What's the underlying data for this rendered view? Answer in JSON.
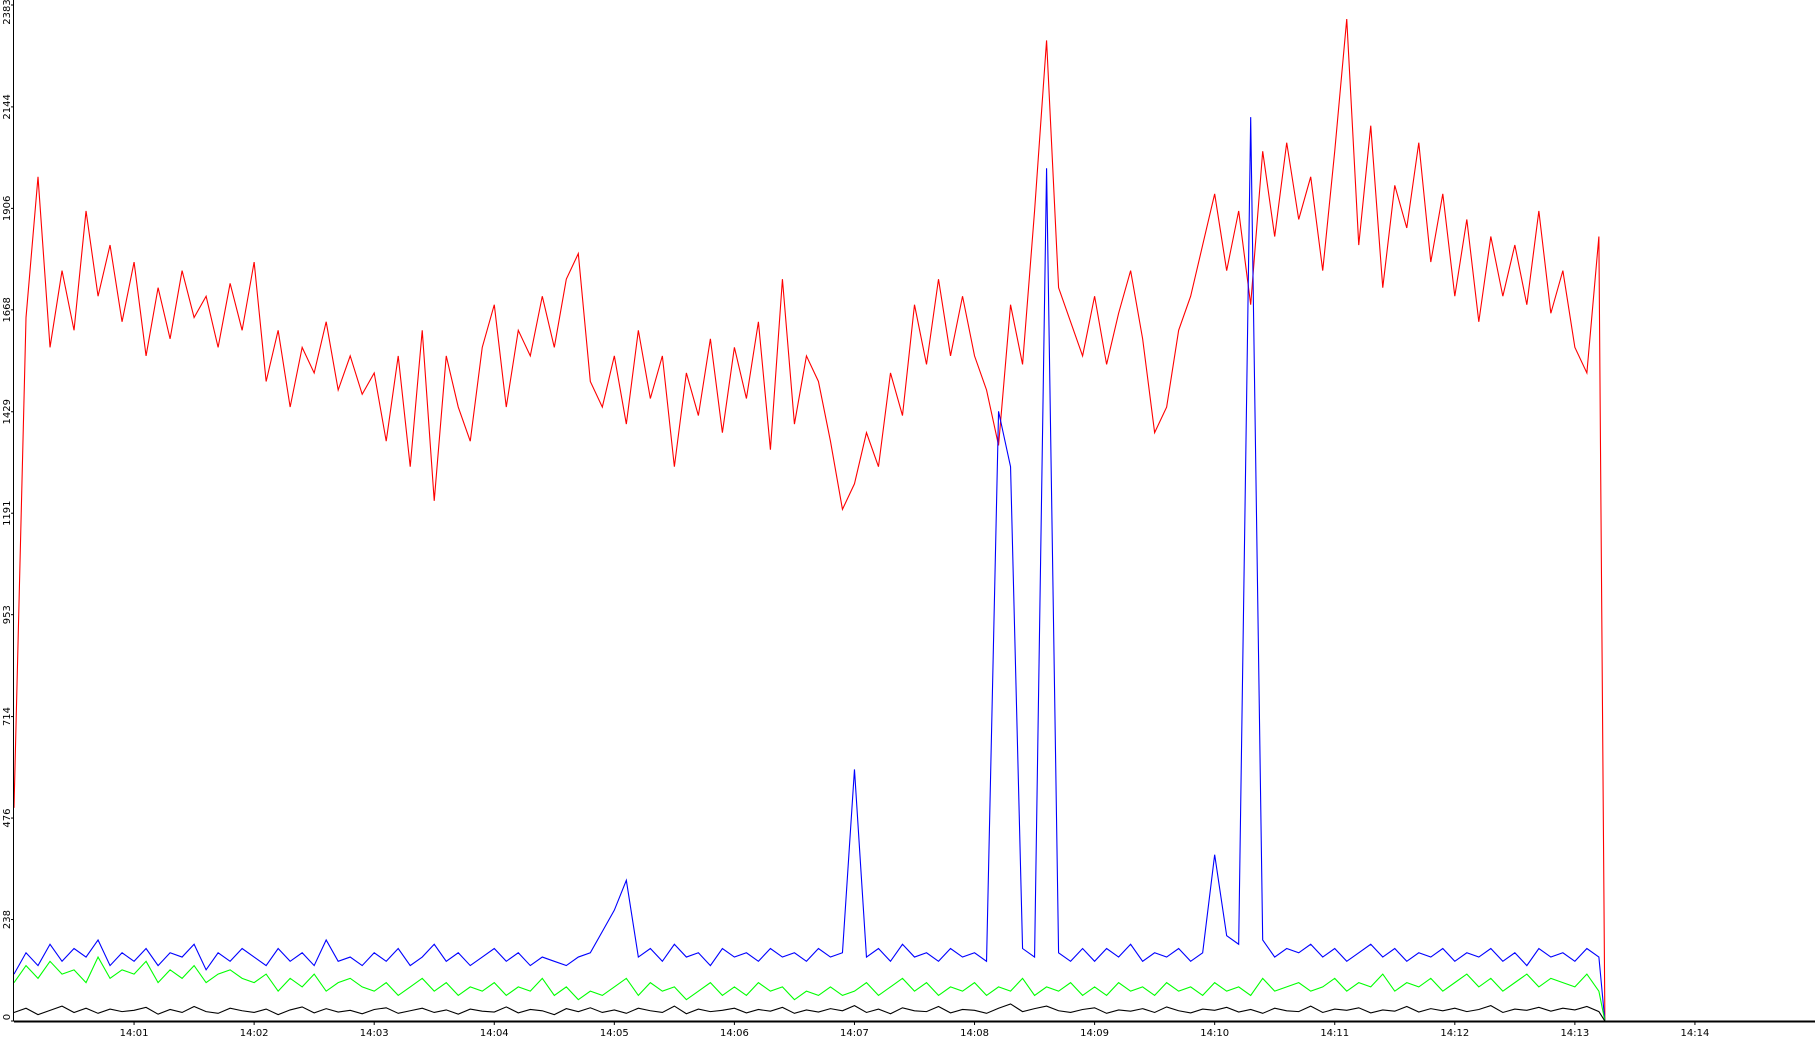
{
  "chart_data": {
    "type": "line",
    "x": [
      0.0,
      0.1,
      0.2,
      0.3,
      0.4,
      0.5,
      0.6,
      0.7,
      0.8,
      0.9,
      1.0,
      1.1,
      1.2,
      1.3,
      1.4,
      1.5,
      1.6,
      1.7,
      1.8,
      1.9,
      2.0,
      2.1,
      2.2,
      2.3,
      2.4,
      2.5,
      2.6,
      2.7,
      2.8,
      2.9,
      3.0,
      3.1,
      3.2,
      3.3,
      3.4,
      3.5,
      3.6,
      3.7,
      3.8,
      3.9,
      4.0,
      4.1,
      4.2,
      4.3,
      4.4,
      4.5,
      4.6,
      4.7,
      4.8,
      4.9,
      5.0,
      5.1,
      5.2,
      5.3,
      5.4,
      5.5,
      5.6,
      5.7,
      5.8,
      5.9,
      6.0,
      6.1,
      6.2,
      6.3,
      6.4,
      6.5,
      6.6,
      6.7,
      6.8,
      6.9,
      7.0,
      7.1,
      7.2,
      7.3,
      7.4,
      7.5,
      7.6,
      7.7,
      7.8,
      7.9,
      8.0,
      8.1,
      8.2,
      8.3,
      8.4,
      8.5,
      8.6,
      8.7,
      8.8,
      8.9,
      9.0,
      9.1,
      9.2,
      9.3,
      9.4,
      9.5,
      9.6,
      9.7,
      9.8,
      9.9,
      10.0,
      10.1,
      10.2,
      10.3,
      10.4,
      10.5,
      10.6,
      10.7,
      10.8,
      10.9,
      11.0,
      11.1,
      11.2,
      11.3,
      11.4,
      11.5,
      11.6,
      11.7,
      11.8,
      11.9,
      12.0,
      12.1,
      12.2,
      12.3,
      12.4,
      12.5,
      12.6,
      12.7,
      12.8,
      12.9,
      13.0,
      13.1,
      13.2,
      13.25
    ],
    "series": [
      {
        "color": "#ff0000",
        "values": [
          500,
          1650,
          1980,
          1580,
          1760,
          1620,
          1900,
          1700,
          1820,
          1640,
          1780,
          1560,
          1720,
          1600,
          1760,
          1650,
          1700,
          1580,
          1730,
          1620,
          1780,
          1500,
          1620,
          1440,
          1580,
          1520,
          1640,
          1480,
          1560,
          1470,
          1520,
          1360,
          1560,
          1300,
          1620,
          1220,
          1560,
          1440,
          1360,
          1580,
          1680,
          1440,
          1620,
          1560,
          1700,
          1580,
          1740,
          1800,
          1500,
          1440,
          1560,
          1400,
          1620,
          1460,
          1560,
          1300,
          1520,
          1420,
          1600,
          1380,
          1580,
          1460,
          1640,
          1340,
          1740,
          1400,
          1560,
          1500,
          1360,
          1200,
          1260,
          1380,
          1300,
          1520,
          1420,
          1680,
          1540,
          1740,
          1560,
          1700,
          1560,
          1480,
          1350,
          1680,
          1540,
          1900,
          2300,
          1720,
          1640,
          1560,
          1700,
          1540,
          1660,
          1760,
          1600,
          1380,
          1440,
          1620,
          1700,
          1820,
          1940,
          1760,
          1900,
          1680,
          2040,
          1840,
          2060,
          1880,
          1980,
          1760,
          2040,
          2350,
          1820,
          2100,
          1720,
          1960,
          1860,
          2060,
          1780,
          1940,
          1700,
          1880,
          1640,
          1840,
          1700,
          1820,
          1680,
          1900,
          1660,
          1760,
          1580,
          1520,
          1840,
          0
        ]
      },
      {
        "color": "#0000ff",
        "values": [
          110,
          160,
          130,
          180,
          140,
          170,
          150,
          190,
          130,
          160,
          140,
          170,
          130,
          160,
          150,
          180,
          120,
          160,
          140,
          170,
          150,
          130,
          170,
          140,
          160,
          130,
          190,
          140,
          150,
          130,
          160,
          140,
          170,
          130,
          150,
          180,
          140,
          160,
          130,
          150,
          170,
          140,
          160,
          130,
          150,
          140,
          130,
          150,
          160,
          210,
          260,
          330,
          150,
          170,
          140,
          180,
          150,
          160,
          130,
          170,
          150,
          160,
          140,
          170,
          150,
          160,
          140,
          170,
          150,
          160,
          590,
          150,
          170,
          140,
          180,
          150,
          160,
          140,
          170,
          150,
          160,
          140,
          1430,
          1300,
          170,
          150,
          2000,
          160,
          140,
          170,
          140,
          170,
          150,
          180,
          140,
          160,
          150,
          170,
          140,
          160,
          390,
          200,
          180,
          2120,
          190,
          150,
          170,
          160,
          180,
          150,
          170,
          140,
          160,
          180,
          150,
          170,
          140,
          160,
          150,
          170,
          140,
          160,
          150,
          170,
          140,
          160,
          130,
          170,
          150,
          160,
          140,
          170,
          150,
          0
        ]
      },
      {
        "color": "#00ff00",
        "values": [
          90,
          130,
          100,
          140,
          110,
          120,
          90,
          150,
          100,
          120,
          110,
          140,
          90,
          120,
          100,
          130,
          90,
          110,
          120,
          100,
          90,
          110,
          70,
          100,
          80,
          110,
          70,
          90,
          100,
          80,
          70,
          90,
          60,
          80,
          100,
          70,
          90,
          60,
          80,
          70,
          90,
          60,
          80,
          70,
          100,
          60,
          80,
          50,
          70,
          60,
          80,
          100,
          60,
          90,
          70,
          80,
          50,
          70,
          90,
          60,
          80,
          60,
          90,
          70,
          80,
          50,
          70,
          60,
          80,
          60,
          70,
          90,
          60,
          80,
          100,
          70,
          90,
          60,
          80,
          70,
          90,
          60,
          80,
          70,
          100,
          60,
          80,
          70,
          90,
          60,
          80,
          60,
          90,
          70,
          80,
          60,
          90,
          70,
          80,
          60,
          90,
          70,
          80,
          60,
          100,
          70,
          80,
          90,
          70,
          80,
          100,
          70,
          90,
          80,
          110,
          70,
          90,
          80,
          100,
          70,
          90,
          110,
          80,
          100,
          70,
          90,
          110,
          80,
          100,
          90,
          80,
          110,
          70,
          0
        ]
      },
      {
        "color": "#000000",
        "values": [
          20,
          30,
          15,
          25,
          35,
          20,
          30,
          18,
          28,
          22,
          25,
          32,
          16,
          27,
          20,
          34,
          22,
          18,
          30,
          24,
          20,
          28,
          15,
          26,
          33,
          19,
          29,
          21,
          25,
          17,
          27,
          31,
          18,
          24,
          30,
          20,
          26,
          16,
          28,
          23,
          21,
          33,
          19,
          27,
          24,
          15,
          29,
          22,
          31,
          20,
          26,
          18,
          30,
          24,
          20,
          35,
          17,
          28,
          22,
          25,
          30,
          19,
          27,
          23,
          32,
          18,
          26,
          21,
          29,
          24,
          36,
          20,
          28,
          17,
          31,
          24,
          22,
          34,
          19,
          27,
          25,
          18,
          30,
          40,
          22,
          29,
          35,
          24,
          20,
          27,
          31,
          18,
          26,
          23,
          29,
          20,
          33,
          24,
          19,
          28,
          25,
          32,
          21,
          27,
          18,
          30,
          24,
          22,
          35,
          20,
          28,
          25,
          31,
          19,
          26,
          23,
          34,
          21,
          29,
          24,
          30,
          22,
          27,
          36,
          20,
          28,
          25,
          32,
          23,
          30,
          26,
          34,
          22,
          0
        ]
      }
    ],
    "xlim": [
      0,
      15
    ],
    "xticks": [
      {
        "value": 1,
        "label": "14:01"
      },
      {
        "value": 2,
        "label": "14:02"
      },
      {
        "value": 3,
        "label": "14:03"
      },
      {
        "value": 4,
        "label": "14:04"
      },
      {
        "value": 5,
        "label": "14:05"
      },
      {
        "value": 6,
        "label": "14:06"
      },
      {
        "value": 7,
        "label": "14:07"
      },
      {
        "value": 8,
        "label": "14:08"
      },
      {
        "value": 9,
        "label": "14:09"
      },
      {
        "value": 10,
        "label": "14:10"
      },
      {
        "value": 11,
        "label": "14:11"
      },
      {
        "value": 12,
        "label": "14:12"
      },
      {
        "value": 13,
        "label": "14:13"
      },
      {
        "value": 14,
        "label": "14:14"
      }
    ],
    "ylim": [
      0,
      2383
    ],
    "yticks": [
      0,
      238,
      476,
      714,
      953,
      1191,
      1429,
      1668,
      1906,
      2144,
      2383
    ]
  }
}
